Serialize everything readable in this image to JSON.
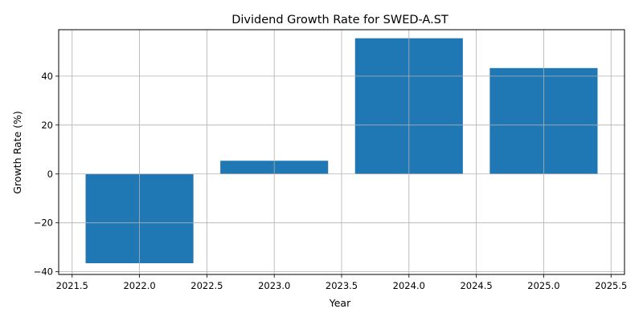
{
  "chart_data": {
    "type": "bar",
    "title": "Dividend Growth Rate for SWED-A.ST",
    "xlabel": "Year",
    "ylabel": "Growth Rate (%)",
    "x": [
      2022,
      2023,
      2024,
      2025
    ],
    "values": [
      -36.5,
      5.4,
      55.5,
      43.3
    ],
    "bar_width": 0.8,
    "xlim": [
      2021.4,
      2025.6
    ],
    "ylim": [
      -41.1,
      59.0
    ],
    "xticks": [
      2021.5,
      2022.0,
      2022.5,
      2023.0,
      2023.5,
      2024.0,
      2024.5,
      2025.0,
      2025.5
    ],
    "xtick_labels": [
      "2021.5",
      "2022.0",
      "2022.5",
      "2023.0",
      "2023.5",
      "2024.0",
      "2024.5",
      "2025.0",
      "2025.5"
    ],
    "yticks": [
      -40,
      -20,
      0,
      20,
      40
    ],
    "ytick_labels": [
      "−40",
      "−20",
      "0",
      "20",
      "40"
    ],
    "grid": true,
    "bar_color": "#1f77b4",
    "grid_color": "#b0b0b0"
  }
}
